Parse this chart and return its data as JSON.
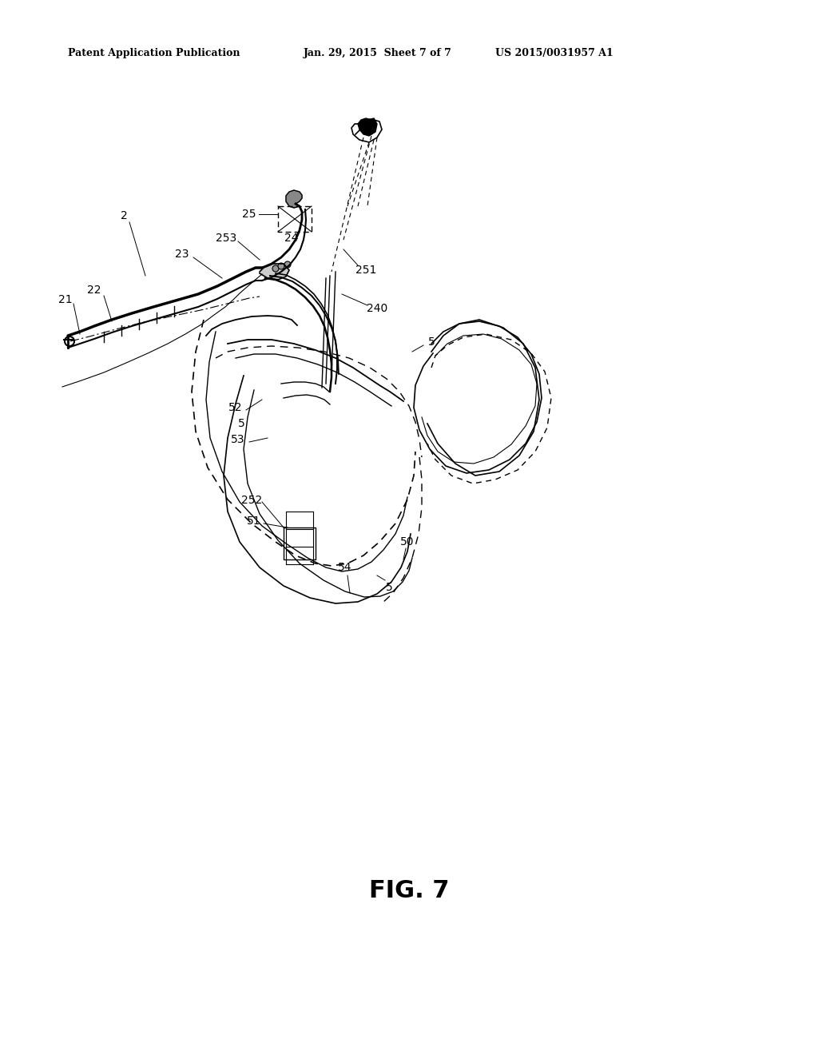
{
  "bg_color": "#ffffff",
  "line_color": "#000000",
  "header_left": "Patent Application Publication",
  "header_center": "Jan. 29, 2015  Sheet 7 of 7",
  "header_right": "US 2015/0031957 A1",
  "fig_label": "FIG. 7"
}
